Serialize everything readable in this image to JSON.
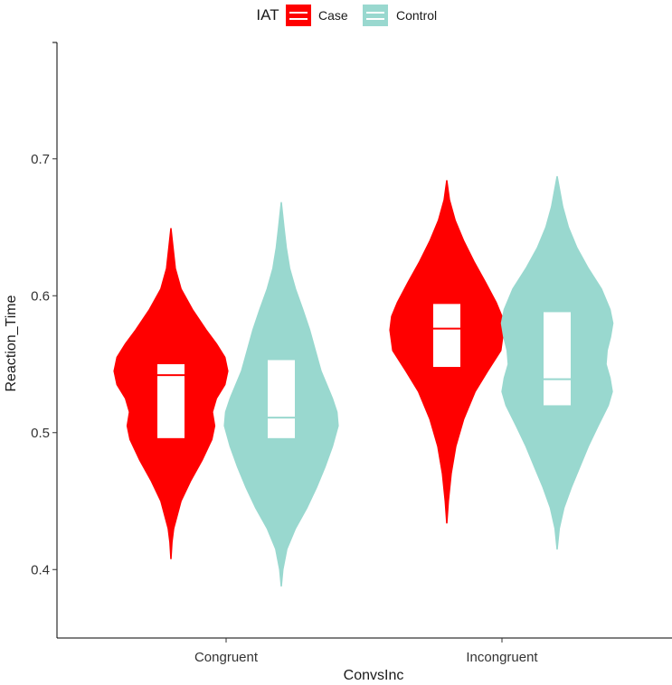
{
  "chart_data": {
    "type": "violin",
    "xlabel": "ConvsInc",
    "ylabel": "Reaction_Time",
    "ylim": [
      0.35,
      0.785
    ],
    "yticks": [
      0.4,
      0.5,
      0.6,
      0.7
    ],
    "categories": [
      "Congruent",
      "Incongruent"
    ],
    "grid": false,
    "legend": {
      "title": "IAT",
      "position": "top",
      "entries": [
        {
          "name": "Case",
          "color": "#ff0000"
        },
        {
          "name": "Control",
          "color": "#99d8cf"
        }
      ]
    },
    "series": [
      {
        "name": "Case",
        "color": "#ff0000",
        "groups": [
          {
            "category": "Congruent",
            "min": 0.408,
            "max": 0.649,
            "q1": 0.496,
            "median": 0.542,
            "q3": 0.55,
            "density": [
              [
                0.408,
                0.003
              ],
              [
                0.42,
                0.02
              ],
              [
                0.43,
                0.05
              ],
              [
                0.45,
                0.18
              ],
              [
                0.465,
                0.35
              ],
              [
                0.48,
                0.55
              ],
              [
                0.495,
                0.72
              ],
              [
                0.505,
                0.77
              ],
              [
                0.515,
                0.73
              ],
              [
                0.525,
                0.8
              ],
              [
                0.535,
                0.95
              ],
              [
                0.545,
                1.0
              ],
              [
                0.555,
                0.95
              ],
              [
                0.565,
                0.8
              ],
              [
                0.575,
                0.62
              ],
              [
                0.59,
                0.38
              ],
              [
                0.605,
                0.18
              ],
              [
                0.62,
                0.08
              ],
              [
                0.635,
                0.04
              ],
              [
                0.649,
                0.003
              ]
            ]
          },
          {
            "category": "Incongruent",
            "min": 0.434,
            "max": 0.684,
            "q1": 0.548,
            "median": 0.576,
            "q3": 0.594,
            "density": [
              [
                0.434,
                0.003
              ],
              [
                0.45,
                0.03
              ],
              [
                0.47,
                0.08
              ],
              [
                0.49,
                0.16
              ],
              [
                0.51,
                0.3
              ],
              [
                0.53,
                0.5
              ],
              [
                0.545,
                0.72
              ],
              [
                0.56,
                0.95
              ],
              [
                0.575,
                1.0
              ],
              [
                0.585,
                0.97
              ],
              [
                0.595,
                0.87
              ],
              [
                0.61,
                0.68
              ],
              [
                0.625,
                0.48
              ],
              [
                0.64,
                0.3
              ],
              [
                0.655,
                0.15
              ],
              [
                0.67,
                0.05
              ],
              [
                0.684,
                0.003
              ]
            ]
          }
        ]
      },
      {
        "name": "Control",
        "color": "#99d8cf",
        "groups": [
          {
            "category": "Congruent",
            "min": 0.388,
            "max": 0.668,
            "q1": 0.496,
            "median": 0.511,
            "q3": 0.553,
            "density": [
              [
                0.388,
                0.003
              ],
              [
                0.4,
                0.03
              ],
              [
                0.415,
                0.1
              ],
              [
                0.43,
                0.25
              ],
              [
                0.445,
                0.45
              ],
              [
                0.46,
                0.62
              ],
              [
                0.475,
                0.77
              ],
              [
                0.49,
                0.9
              ],
              [
                0.505,
                1.0
              ],
              [
                0.515,
                0.98
              ],
              [
                0.525,
                0.9
              ],
              [
                0.535,
                0.8
              ],
              [
                0.545,
                0.7
              ],
              [
                0.56,
                0.6
              ],
              [
                0.575,
                0.5
              ],
              [
                0.59,
                0.38
              ],
              [
                0.605,
                0.25
              ],
              [
                0.62,
                0.15
              ],
              [
                0.635,
                0.09
              ],
              [
                0.65,
                0.05
              ],
              [
                0.668,
                0.003
              ]
            ]
          },
          {
            "category": "Incongruent",
            "min": 0.415,
            "max": 0.687,
            "q1": 0.52,
            "median": 0.539,
            "q3": 0.588,
            "density": [
              [
                0.415,
                0.003
              ],
              [
                0.43,
                0.04
              ],
              [
                0.445,
                0.12
              ],
              [
                0.46,
                0.25
              ],
              [
                0.475,
                0.4
              ],
              [
                0.49,
                0.55
              ],
              [
                0.505,
                0.72
              ],
              [
                0.52,
                0.9
              ],
              [
                0.53,
                0.97
              ],
              [
                0.54,
                0.93
              ],
              [
                0.55,
                0.86
              ],
              [
                0.56,
                0.88
              ],
              [
                0.57,
                0.94
              ],
              [
                0.58,
                0.98
              ],
              [
                0.59,
                0.93
              ],
              [
                0.605,
                0.78
              ],
              [
                0.62,
                0.55
              ],
              [
                0.635,
                0.35
              ],
              [
                0.65,
                0.2
              ],
              [
                0.665,
                0.1
              ],
              [
                0.687,
                0.003
              ]
            ]
          }
        ]
      }
    ]
  }
}
